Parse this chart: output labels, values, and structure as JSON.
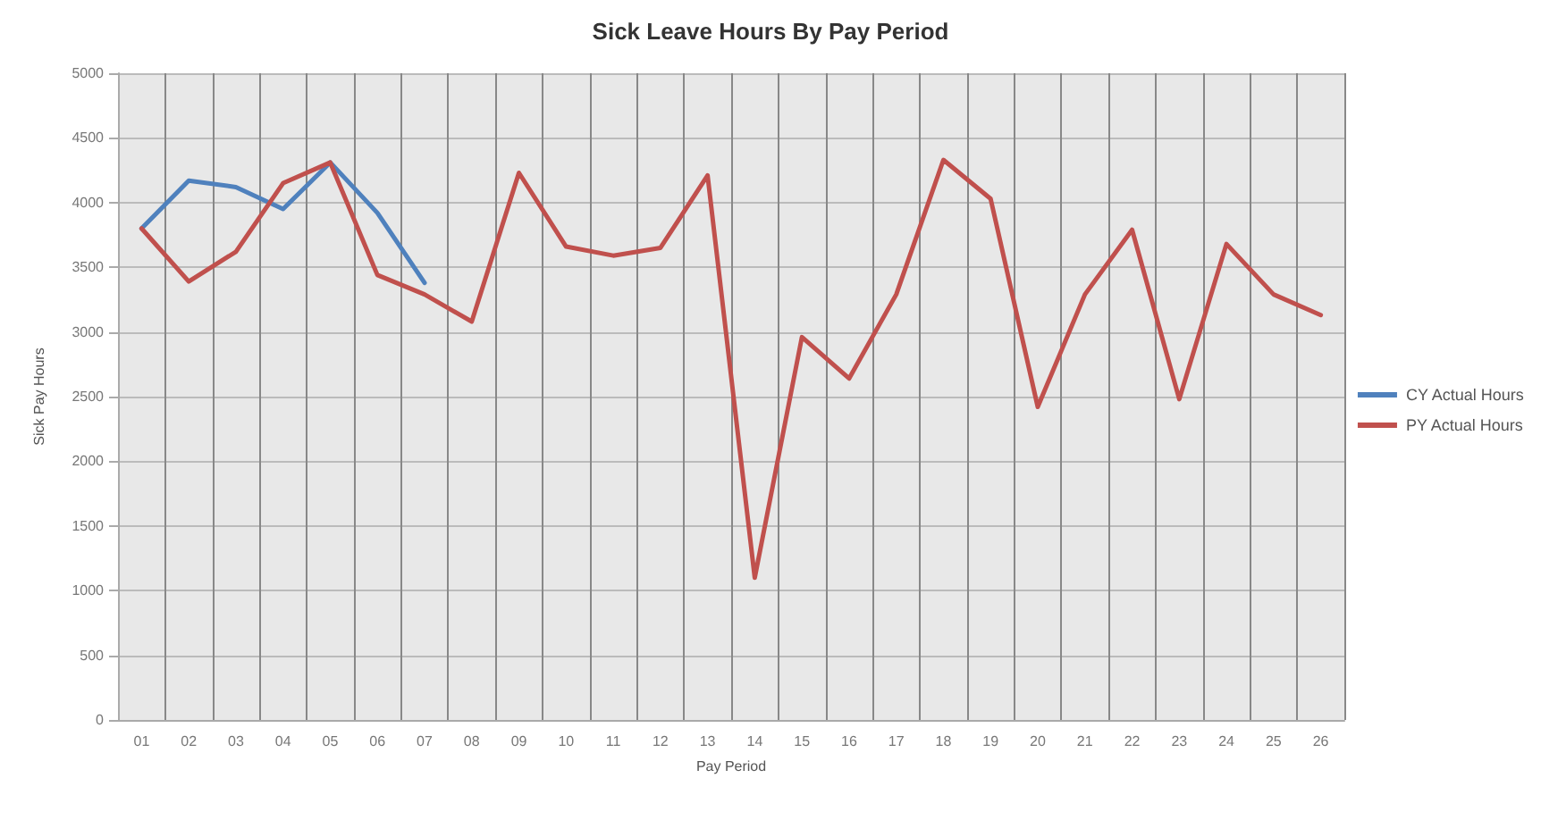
{
  "chart_data": {
    "type": "line",
    "title": "Sick Leave Hours By Pay Period",
    "xlabel": "Pay Period",
    "ylabel": "Sick Pay Hours",
    "categories": [
      "01",
      "02",
      "03",
      "04",
      "05",
      "06",
      "07",
      "08",
      "09",
      "10",
      "11",
      "12",
      "13",
      "14",
      "15",
      "16",
      "17",
      "18",
      "19",
      "20",
      "21",
      "22",
      "23",
      "24",
      "25",
      "26"
    ],
    "series": [
      {
        "name": "CY Actual Hours",
        "color": "#4f81bd",
        "values": [
          3800,
          4170,
          4120,
          3950,
          4310,
          3920,
          3380,
          null,
          null,
          null,
          null,
          null,
          null,
          null,
          null,
          null,
          null,
          null,
          null,
          null,
          null,
          null,
          null,
          null,
          null,
          null
        ]
      },
      {
        "name": "PY Actual Hours",
        "color": "#c0504d",
        "values": [
          3800,
          3390,
          3620,
          4150,
          4310,
          3440,
          3290,
          3080,
          4230,
          3660,
          3590,
          3650,
          4210,
          1100,
          2960,
          2640,
          3290,
          4330,
          4030,
          2420,
          3290,
          3790,
          2480,
          3680,
          3290,
          3130
        ]
      }
    ],
    "ylim": [
      0,
      5000
    ],
    "yticks": [
      0,
      500,
      1000,
      1500,
      2000,
      2500,
      3000,
      3500,
      4000,
      4500,
      5000
    ],
    "grid": true,
    "legend": "right",
    "marker": "none",
    "line_style": "solid"
  }
}
